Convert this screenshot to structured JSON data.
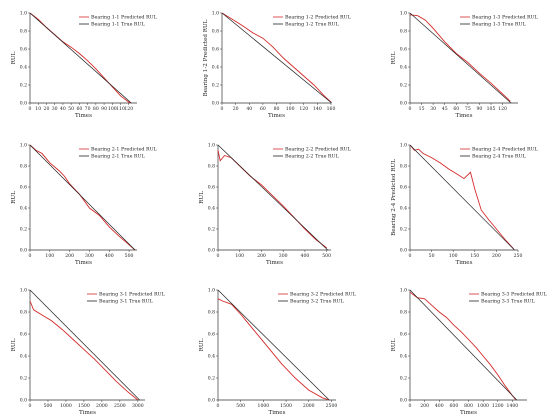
{
  "colors": {
    "predicted": "#d42a2a",
    "true": "#222222",
    "axis": "#333333"
  },
  "chart_data": [
    {
      "type": "line",
      "ylabel": "RUL",
      "xlabel": "Times",
      "xlim": [
        0,
        130
      ],
      "ylim": [
        0,
        1.0
      ],
      "xticks": [
        0,
        10,
        20,
        30,
        40,
        50,
        60,
        70,
        80,
        90,
        100,
        110,
        120
      ],
      "yticks": [
        0,
        0.2,
        0.4,
        0.6,
        0.8,
        1.0
      ],
      "legend": "top-right",
      "series": [
        {
          "name": "Bearing 1-1 Predicted RUL",
          "role": "predicted",
          "x": [
            0,
            10,
            20,
            30,
            40,
            50,
            60,
            70,
            80,
            90,
            100,
            110,
            120,
            123
          ],
          "y": [
            1.0,
            0.93,
            0.84,
            0.76,
            0.68,
            0.62,
            0.55,
            0.47,
            0.38,
            0.28,
            0.18,
            0.08,
            0.01,
            0.0
          ]
        },
        {
          "name": "Bearing 1-1 True RUL",
          "role": "true",
          "x": [
            0,
            123
          ],
          "y": [
            1.0,
            0.0
          ]
        }
      ]
    },
    {
      "type": "line",
      "ylabel": "Bearing 1-2 Predicted RUL",
      "xlabel": "Times",
      "xlim": [
        0,
        160
      ],
      "ylim": [
        0,
        1.0
      ],
      "xticks": [
        0,
        20,
        40,
        60,
        80,
        100,
        120,
        140,
        160
      ],
      "yticks": [
        0,
        0.2,
        0.4,
        0.6,
        0.8,
        1.0
      ],
      "legend": "top-right",
      "series": [
        {
          "name": "Bearing 1-2 Predicted RUL",
          "role": "predicted",
          "x": [
            0,
            15,
            30,
            45,
            60,
            75,
            90,
            105,
            120,
            135,
            150,
            160
          ],
          "y": [
            1.0,
            0.93,
            0.86,
            0.78,
            0.72,
            0.62,
            0.5,
            0.4,
            0.3,
            0.2,
            0.08,
            0.01
          ]
        },
        {
          "name": "Bearing 1-2 True RUL",
          "role": "true",
          "x": [
            0,
            161
          ],
          "y": [
            1.0,
            0.0
          ]
        }
      ]
    },
    {
      "type": "line",
      "ylabel": "RUL",
      "xlabel": "Times",
      "xlim": [
        0,
        140
      ],
      "ylim": [
        0,
        1.0
      ],
      "xticks": [
        0,
        15,
        30,
        45,
        60,
        75,
        90,
        105,
        120
      ],
      "yticks": [
        0,
        0.2,
        0.4,
        0.6,
        0.8,
        1.0
      ],
      "legend": "top-right",
      "series": [
        {
          "name": "Bearing 1-3 Predicted RUL",
          "role": "predicted",
          "x": [
            0,
            10,
            20,
            30,
            45,
            60,
            75,
            90,
            105,
            120,
            130
          ],
          "y": [
            0.98,
            0.97,
            0.92,
            0.83,
            0.68,
            0.55,
            0.45,
            0.33,
            0.22,
            0.1,
            0.02
          ]
        },
        {
          "name": "Bearing 1-3 True RUL",
          "role": "true",
          "x": [
            0,
            131
          ],
          "y": [
            1.0,
            0.0
          ]
        }
      ]
    },
    {
      "type": "line",
      "ylabel": "RUL",
      "xlabel": "Times",
      "xlim": [
        0,
        540
      ],
      "ylim": [
        0,
        1.0
      ],
      "xticks": [
        0,
        100,
        200,
        300,
        400,
        500
      ],
      "yticks": [
        0,
        0.2,
        0.4,
        0.6,
        0.8,
        1.0
      ],
      "legend": "top-right",
      "series": [
        {
          "name": "Bearing 2-1 Predicted RUL",
          "role": "predicted",
          "x": [
            0,
            30,
            60,
            100,
            150,
            175,
            200,
            250,
            300,
            350,
            400,
            450,
            500,
            530
          ],
          "y": [
            1.0,
            0.95,
            0.92,
            0.83,
            0.75,
            0.7,
            0.63,
            0.53,
            0.4,
            0.33,
            0.22,
            0.13,
            0.05,
            0.0
          ]
        },
        {
          "name": "Bearing 2-1 True RUL",
          "role": "true",
          "x": [
            0,
            530
          ],
          "y": [
            1.0,
            0.0
          ]
        }
      ]
    },
    {
      "type": "line",
      "ylabel": "RUL",
      "xlabel": "Times",
      "xlim": [
        0,
        520
      ],
      "ylim": [
        0,
        1.0
      ],
      "xticks": [
        0,
        100,
        200,
        300,
        400,
        500
      ],
      "yticks": [
        0,
        0.2,
        0.4,
        0.6,
        0.8,
        1.0
      ],
      "legend": "top-right",
      "series": [
        {
          "name": "Bearing 2-2 Predicted RUL",
          "role": "predicted",
          "x": [
            0,
            10,
            30,
            60,
            100,
            150,
            200,
            250,
            300,
            350,
            400,
            450,
            500
          ],
          "y": [
            0.95,
            0.85,
            0.9,
            0.88,
            0.8,
            0.7,
            0.62,
            0.52,
            0.42,
            0.31,
            0.2,
            0.1,
            0.02
          ]
        },
        {
          "name": "Bearing 2-2 True RUL",
          "role": "true",
          "x": [
            0,
            505
          ],
          "y": [
            1.0,
            0.0
          ]
        }
      ]
    },
    {
      "type": "line",
      "ylabel": "Bearing 2-4 Predicted RUL",
      "xlabel": "Times",
      "xlim": [
        0,
        250
      ],
      "ylim": [
        0,
        1.0
      ],
      "xticks": [
        0,
        50,
        100,
        150,
        200,
        250
      ],
      "yticks": [
        0,
        0.2,
        0.4,
        0.6,
        0.8,
        1.0
      ],
      "legend": "top-right",
      "series": [
        {
          "name": "Bearing 2-4 Predicted RUL",
          "role": "predicted",
          "x": [
            0,
            10,
            20,
            30,
            50,
            70,
            90,
            110,
            125,
            140,
            150,
            165,
            180,
            200,
            220,
            240
          ],
          "y": [
            1.0,
            0.95,
            0.96,
            0.92,
            0.88,
            0.83,
            0.77,
            0.72,
            0.68,
            0.74,
            0.58,
            0.38,
            0.3,
            0.2,
            0.1,
            0.01
          ]
        },
        {
          "name": "Bearing 2-4 True RUL",
          "role": "true",
          "x": [
            0,
            242
          ],
          "y": [
            1.0,
            0.0
          ]
        }
      ]
    },
    {
      "type": "line",
      "ylabel": "RUL",
      "xlabel": "Times",
      "xlim": [
        0,
        3200
      ],
      "ylim": [
        0,
        1.0
      ],
      "xticks": [
        0,
        500,
        1000,
        1500,
        2000,
        2500,
        3000
      ],
      "yticks": [
        0,
        0.2,
        0.4,
        0.6,
        0.8,
        1.0
      ],
      "legend": "top-right",
      "series": [
        {
          "name": "Bearing 3-1 Predicted RUL",
          "role": "predicted",
          "x": [
            0,
            100,
            300,
            600,
            900,
            1200,
            1500,
            1800,
            2100,
            2400,
            2700,
            3000
          ],
          "y": [
            0.9,
            0.82,
            0.78,
            0.72,
            0.64,
            0.55,
            0.46,
            0.37,
            0.27,
            0.17,
            0.08,
            0.0
          ]
        },
        {
          "name": "Bearing 3-1 True RUL",
          "role": "true",
          "x": [
            0,
            3050
          ],
          "y": [
            1.0,
            0.0
          ]
        }
      ]
    },
    {
      "type": "line",
      "ylabel": "RUL",
      "xlabel": "Times",
      "xlim": [
        0,
        2600
      ],
      "ylim": [
        0,
        1.0
      ],
      "xticks": [
        0,
        500,
        1000,
        1500,
        2000,
        2500
      ],
      "yticks": [
        0,
        0.2,
        0.4,
        0.6,
        0.8,
        1.0
      ],
      "legend": "top-right",
      "series": [
        {
          "name": "Bearing 3-2 Predicted RUL",
          "role": "predicted",
          "x": [
            0,
            100,
            300,
            500,
            800,
            1100,
            1400,
            1700,
            2000,
            2300,
            2450
          ],
          "y": [
            0.92,
            0.9,
            0.87,
            0.78,
            0.63,
            0.48,
            0.33,
            0.2,
            0.09,
            0.02,
            0.0
          ]
        },
        {
          "name": "Bearing 3-2 True RUL",
          "role": "true",
          "x": [
            0,
            2450
          ],
          "y": [
            1.0,
            0.0
          ]
        }
      ]
    },
    {
      "type": "line",
      "ylabel": "RUL",
      "xlabel": "Times",
      "xlim": [
        0,
        1600
      ],
      "ylim": [
        0,
        1.0
      ],
      "xticks": [
        0,
        200,
        400,
        600,
        800,
        1000,
        1200,
        1400
      ],
      "yticks": [
        0,
        0.2,
        0.4,
        0.6,
        0.8,
        1.0
      ],
      "legend": "top-right",
      "series": [
        {
          "name": "Bearing 3-3 Predicted RUL",
          "role": "predicted",
          "x": [
            0,
            100,
            200,
            300,
            400,
            500,
            600,
            700,
            800,
            900,
            1000,
            1100,
            1200,
            1300,
            1400,
            1450
          ],
          "y": [
            0.98,
            0.93,
            0.92,
            0.86,
            0.8,
            0.75,
            0.68,
            0.62,
            0.55,
            0.48,
            0.4,
            0.32,
            0.23,
            0.13,
            0.04,
            0.0
          ]
        },
        {
          "name": "Bearing 3-3 True RUL",
          "role": "true",
          "x": [
            0,
            1460
          ],
          "y": [
            1.0,
            0.0
          ]
        }
      ]
    }
  ]
}
